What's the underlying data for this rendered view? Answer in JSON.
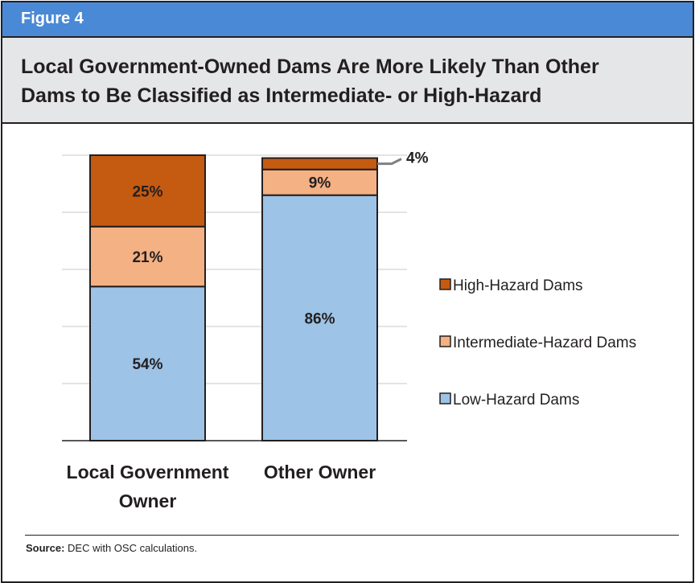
{
  "header": {
    "figure_label": "Figure 4",
    "title_line1": "Local Government-Owned Dams Are More Likely Than Other",
    "title_line2": "Dams to Be Classified as Intermediate- or High-Hazard"
  },
  "source": {
    "prefix": "Source:",
    "text": " DEC with OSC calculations."
  },
  "colors": {
    "header_bg": "#4a89d6",
    "title_bg": "#e5e6e7",
    "high": "#c55a11",
    "intermediate": "#f4b183",
    "low": "#9dc3e6"
  },
  "chart_data": {
    "type": "bar",
    "stacked": true,
    "categories": [
      [
        "Local Government",
        "Owner"
      ],
      [
        "Other Owner"
      ]
    ],
    "series": [
      {
        "name": "Low-Hazard Dams",
        "values": [
          54,
          86
        ],
        "labels": [
          "54%",
          "86%"
        ],
        "color": "#9dc3e6"
      },
      {
        "name": "Intermediate-Hazard Dams",
        "values": [
          21,
          9
        ],
        "labels": [
          "21%",
          "9%"
        ],
        "color": "#f4b183"
      },
      {
        "name": "High-Hazard Dams",
        "values": [
          25,
          4
        ],
        "labels": [
          "25%",
          "4%"
        ],
        "color": "#c55a11"
      }
    ],
    "ylim": [
      0,
      100
    ],
    "grid": true,
    "legend_position": "right",
    "title": "",
    "xlabel": "",
    "ylabel": ""
  }
}
